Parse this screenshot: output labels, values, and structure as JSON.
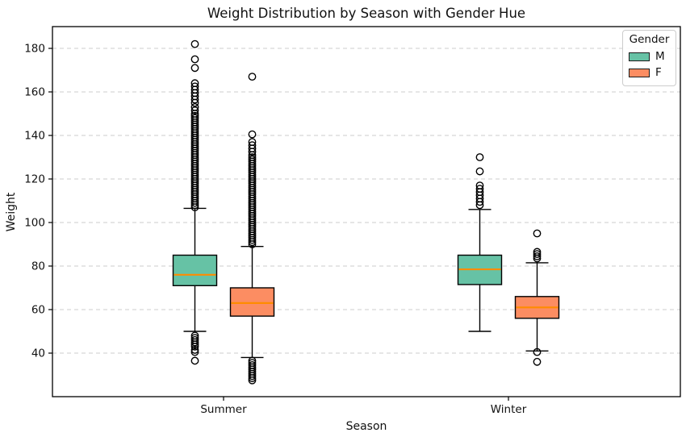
{
  "title": "Weight Distribution by Season with Gender Hue",
  "legend": {
    "title": "Gender",
    "entries": [
      {
        "label": "M",
        "color": "#66c2a5"
      },
      {
        "label": "F",
        "color": "#fc8d62"
      }
    ]
  },
  "chart_data": {
    "type": "boxplot",
    "title": "Weight Distribution by Season with Gender Hue",
    "xlabel": "Season",
    "ylabel": "Weight",
    "categories": [
      "Summer",
      "Winter"
    ],
    "ylim": [
      20,
      190
    ],
    "yticks": [
      40,
      60,
      80,
      100,
      120,
      140,
      160,
      180
    ],
    "grid": "horizontal-dashed",
    "legend_position": "upper right",
    "median_color": "#ff8c00",
    "box_edge_color": "#000000",
    "series": [
      {
        "name": "M",
        "color": "#66c2a5",
        "boxes": [
          {
            "category": "Summer",
            "whisker_low": 50,
            "q1": 71,
            "median": 76,
            "q3": 85,
            "whisker_high": 106.5,
            "outliers_low": [
              48,
              47,
              46,
              45,
              44,
              43,
              41.5,
              40.5,
              36.5
            ],
            "outliers_high": [
              107,
              108,
              109,
              110,
              111,
              112,
              113,
              114,
              115,
              116,
              117,
              118,
              119,
              120,
              121,
              122,
              123,
              124,
              125,
              126,
              127,
              128,
              129,
              130,
              131,
              132,
              133,
              134,
              135,
              136,
              137,
              138,
              139,
              140,
              141,
              142,
              143,
              144,
              145,
              146,
              147,
              148,
              149,
              150,
              151.5,
              153,
              155,
              156.5,
              158,
              159.5,
              161,
              162.5,
              164,
              171,
              175,
              182
            ]
          },
          {
            "category": "Winter",
            "whisker_low": 50,
            "q1": 71.5,
            "median": 78.5,
            "q3": 85,
            "whisker_high": 106,
            "outliers_low": [],
            "outliers_high": [
              108,
              109.5,
              111,
              112.5,
              114,
              115.5,
              117,
              123.5,
              130
            ]
          }
        ]
      },
      {
        "name": "F",
        "color": "#fc8d62",
        "boxes": [
          {
            "category": "Summer",
            "whisker_low": 38,
            "q1": 57,
            "median": 63,
            "q3": 70,
            "whisker_high": 89,
            "outliers_low": [
              36.5,
              35.5,
              34.5,
              33.5,
              32.5,
              31.5,
              30.5,
              29.5,
              28.5,
              27.5
            ],
            "outliers_high": [
              90,
              91,
              92,
              93,
              94,
              95,
              96,
              97,
              98,
              99,
              100,
              101,
              102,
              103,
              104,
              105,
              106,
              107,
              108,
              109,
              110,
              111,
              112,
              113,
              114,
              115,
              116,
              117,
              118,
              119,
              120,
              121,
              122,
              123,
              124,
              125,
              126,
              127,
              128,
              129,
              130,
              131,
              132.5,
              134,
              135.5,
              137,
              140.5,
              167
            ]
          },
          {
            "category": "Winter",
            "whisker_low": 41,
            "q1": 56,
            "median": 61,
            "q3": 66,
            "whisker_high": 81.5,
            "outliers_low": [
              40.5,
              36
            ],
            "outliers_high": [
              83.5,
              84.5,
              85.5,
              86.5,
              95
            ]
          }
        ]
      }
    ]
  }
}
